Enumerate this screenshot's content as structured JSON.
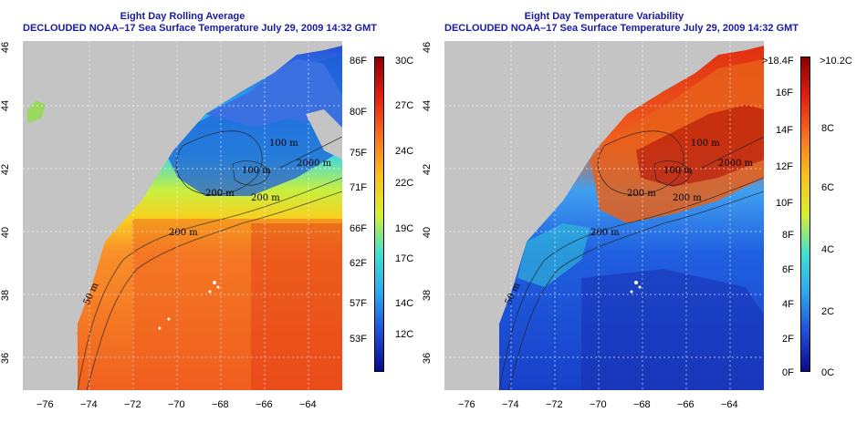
{
  "left_panel": {
    "title": "Eight Day Rolling Average",
    "subtitle": "DECLOUDED NOAA–17 Sea Surface Temperature July 29, 2009 14:32 GMT",
    "scale_f": [
      "86F",
      "80F",
      "75F",
      "71F",
      "66F",
      "62F",
      "57F",
      "53F"
    ],
    "scale_c": [
      "30C",
      "27C",
      "24C",
      "22C",
      "19C",
      "17C",
      "14C",
      "12C"
    ],
    "contours": [
      "100 m",
      "100 m",
      "200 m",
      "200 m",
      "2000 m",
      "200 m",
      "50 m"
    ]
  },
  "right_panel": {
    "title": "Eight Day Temperature Variability",
    "subtitle": "DECLOUDED NOAA–17 Sea Surface Temperature July 29, 2009 14:32 GMT",
    "scale_f": [
      ">18.4F",
      "16F",
      "14F",
      "12F",
      "10F",
      "8F",
      "6F",
      "4F",
      "2F",
      "0F"
    ],
    "scale_c": [
      ">10.2C",
      "8C",
      "6C",
      "4C",
      "2C",
      "0C"
    ],
    "contours": [
      "100 m",
      "100 m",
      "200 m",
      "200 m",
      "2000 m",
      "200 m",
      "50 m"
    ]
  },
  "axes": {
    "x_ticks": [
      "−76",
      "−74",
      "−72",
      "−70",
      "−68",
      "−66",
      "−64"
    ],
    "y_ticks": [
      "46",
      "44",
      "42",
      "40",
      "38",
      "36"
    ]
  },
  "colors": {
    "title": "#1a1aa0",
    "land": "#c4c4c4",
    "sst_scale": [
      "#0a0a8c",
      "#1e4fd8",
      "#2aa8f0",
      "#40e0d0",
      "#d8f030",
      "#f8c020",
      "#f87020",
      "#e02010",
      "#8c0000"
    ],
    "var_scale": [
      "#0a0a8c",
      "#1e4fd8",
      "#2aa8f0",
      "#40e0d0",
      "#d8f030",
      "#f8c020",
      "#f87020",
      "#e02010",
      "#8c0000"
    ]
  }
}
